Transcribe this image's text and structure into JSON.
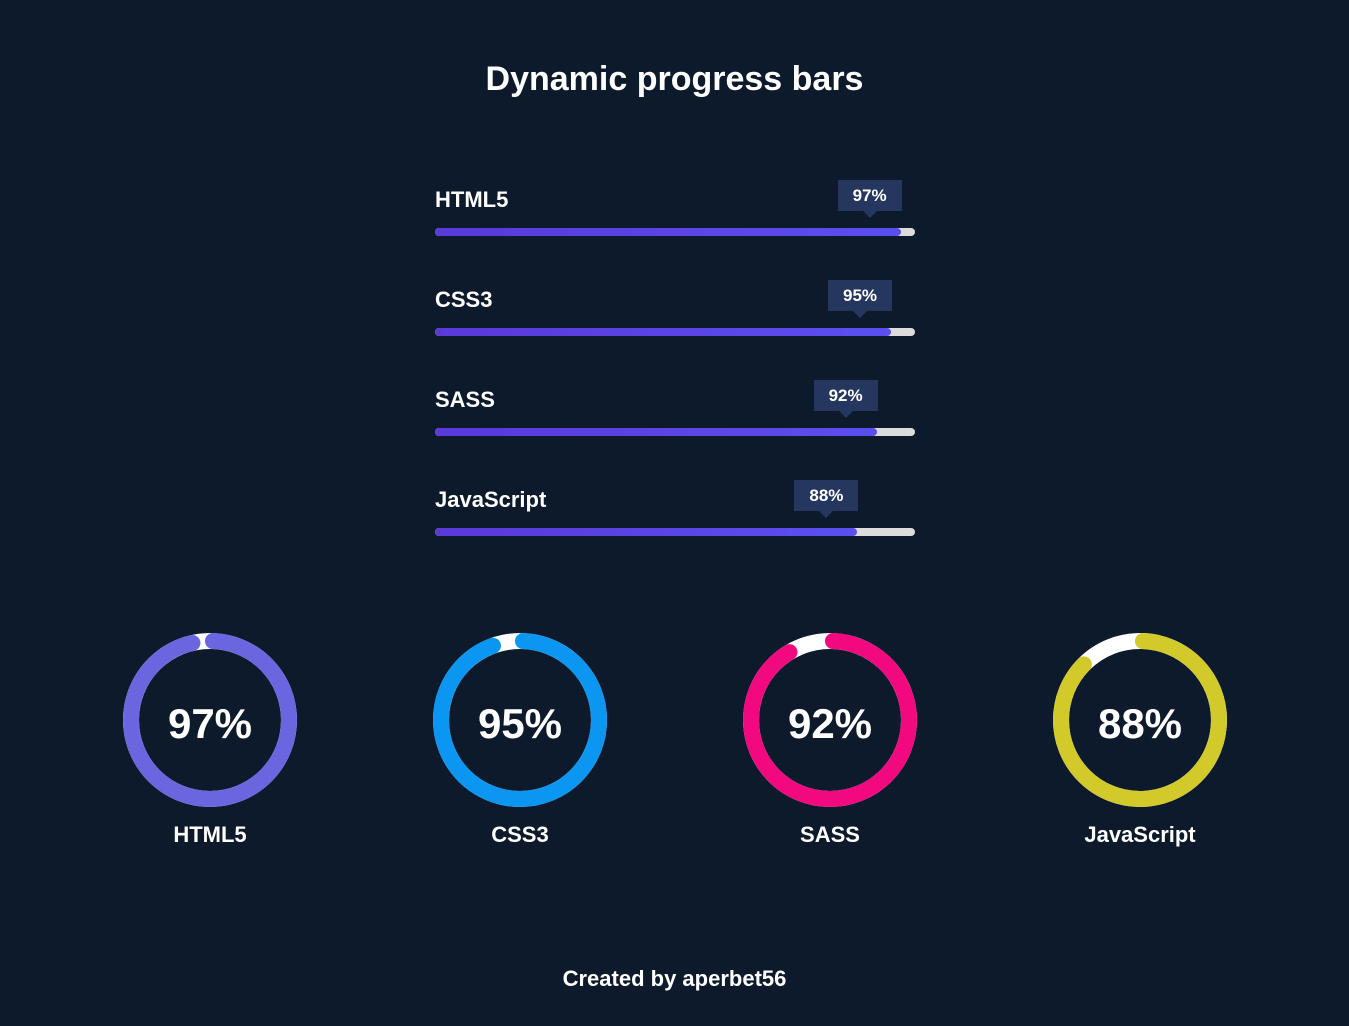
{
  "title": "Dynamic progress bars",
  "bars": [
    {
      "label": "HTML5",
      "value": 97,
      "value_text": "97%"
    },
    {
      "label": "CSS3",
      "value": 95,
      "value_text": "95%"
    },
    {
      "label": "SASS",
      "value": 92,
      "value_text": "92%"
    },
    {
      "label": "JavaScript",
      "value": 88,
      "value_text": "88%"
    }
  ],
  "circles": [
    {
      "label": "HTML5",
      "value": 97,
      "value_text": "97%",
      "color": "#6b66e0"
    },
    {
      "label": "CSS3",
      "value": 95,
      "value_text": "95%",
      "color": "#0b96f2"
    },
    {
      "label": "SASS",
      "value": 92,
      "value_text": "92%",
      "color": "#f2087f"
    },
    {
      "label": "JavaScript",
      "value": 88,
      "value_text": "88%",
      "color": "#d2c92a"
    }
  ],
  "colors": {
    "background": "#0c1a2b",
    "bar_fill": "#5a3fe0",
    "bar_track": "#dcdcdc",
    "tooltip": "#25365f",
    "ring_track": "#ffffff"
  },
  "footer": "Created by aperbet56"
}
